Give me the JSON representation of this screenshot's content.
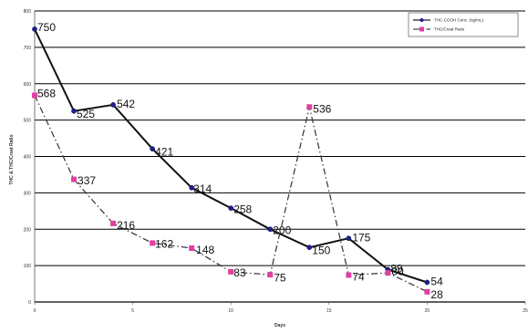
{
  "chart_data": {
    "type": "line",
    "title": "",
    "xlabel": "Days",
    "ylabel": "THC & THC/Creat Ratio",
    "xlim": [
      0,
      25
    ],
    "ylim": [
      0,
      800
    ],
    "x_ticks": [
      "0",
      "5",
      "10",
      "15",
      "20",
      "25"
    ],
    "y_ticks": [
      "0",
      "100",
      "200",
      "300",
      "400",
      "500",
      "600",
      "700",
      "800"
    ],
    "grid": "horizontal",
    "legend_position": "top-right",
    "series": [
      {
        "name": "THC-COOH Conc. (ng/mL)",
        "color": "#1f1f8f",
        "marker": "circle",
        "line": "solid",
        "x": [
          0,
          2,
          4,
          6,
          8,
          10,
          12,
          14,
          16,
          18,
          20
        ],
        "values": [
          750,
          525,
          542,
          421,
          314,
          258,
          200,
          150,
          175,
          89,
          54
        ],
        "labels": [
          "750",
          "525",
          "542",
          "421",
          "314",
          "258",
          "200",
          "150",
          "175",
          "89",
          "54"
        ]
      },
      {
        "name": "THC/Creat Ratio",
        "color": "#e040a0",
        "marker": "square",
        "line": "dashdot",
        "x": [
          0,
          2,
          4,
          6,
          8,
          10,
          12,
          14,
          16,
          18,
          20
        ],
        "values": [
          568,
          337,
          216,
          162,
          148,
          83,
          75,
          536,
          74,
          80,
          28
        ],
        "labels": [
          "568",
          "337",
          "216",
          "162",
          "148",
          "83",
          "75",
          "536",
          "74",
          "80",
          "28"
        ]
      }
    ]
  }
}
